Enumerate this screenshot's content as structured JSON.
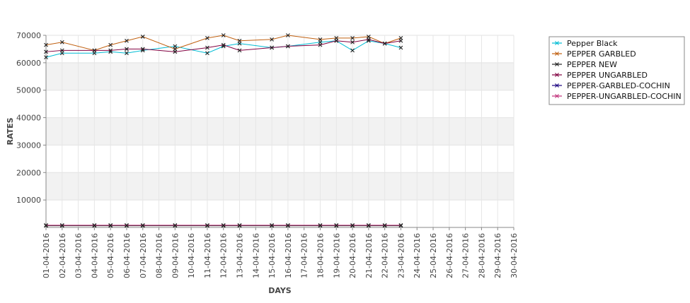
{
  "chart_data": {
    "type": "line",
    "xlabel": "DAYS",
    "ylabel": "RATES",
    "ylim": [
      0,
      70000
    ],
    "yticks": [
      10000,
      20000,
      30000,
      40000,
      50000,
      60000,
      70000
    ],
    "grid": true,
    "legend_position": "right",
    "x": [
      "01-04-2016",
      "02-04-2016",
      "03-04-2016",
      "04-04-2016",
      "05-04-2016",
      "06-04-2016",
      "07-04-2016",
      "08-04-2016",
      "09-04-2016",
      "10-04-2016",
      "11-04-2016",
      "12-04-2016",
      "13-04-2016",
      "14-04-2016",
      "15-04-2016",
      "16-04-2016",
      "17-04-2016",
      "18-04-2016",
      "19-04-2016",
      "20-04-2016",
      "21-04-2016",
      "22-04-2016",
      "23-04-2016",
      "24-04-2016",
      "25-04-2016",
      "26-04-2016",
      "27-04-2016",
      "28-04-2016",
      "29-04-2016",
      "30-04-2016"
    ],
    "series": [
      {
        "name": "Pepper Black",
        "color": "#00bcd4",
        "values": [
          62000,
          63500,
          null,
          63500,
          64000,
          63500,
          64500,
          null,
          66000,
          null,
          63500,
          66000,
          67000,
          null,
          65500,
          66000,
          null,
          67500,
          68000,
          64500,
          68000,
          67000,
          65500,
          null,
          null,
          null,
          null,
          null,
          null,
          null
        ]
      },
      {
        "name": "PEPPER GARBLED",
        "color": "#c06010",
        "values": [
          66500,
          67500,
          null,
          64500,
          66500,
          68000,
          69500,
          null,
          65000,
          null,
          69000,
          70000,
          68000,
          null,
          68500,
          70000,
          null,
          68500,
          69000,
          69000,
          69500,
          67000,
          69000,
          null,
          null,
          null,
          null,
          null,
          null,
          null
        ]
      },
      {
        "name": "PEPPER NEW",
        "color": "#222222",
        "values": [
          600,
          600,
          null,
          600,
          600,
          600,
          600,
          null,
          600,
          null,
          600,
          600,
          600,
          null,
          600,
          600,
          null,
          600,
          600,
          600,
          600,
          600,
          600,
          null,
          null,
          null,
          null,
          null,
          null,
          null
        ]
      },
      {
        "name": "PEPPER UNGARBLED",
        "color": "#800040",
        "values": [
          64000,
          64500,
          null,
          64500,
          64500,
          65000,
          65000,
          null,
          64000,
          null,
          65500,
          66500,
          64500,
          null,
          65500,
          66000,
          null,
          66500,
          68000,
          67500,
          68500,
          67000,
          68000,
          null,
          null,
          null,
          null,
          null,
          null,
          null
        ]
      },
      {
        "name": "PEPPER-GARBLED-COCHIN",
        "color": "#1a0080",
        "values": [
          null,
          null,
          null,
          null,
          null,
          null,
          null,
          null,
          null,
          null,
          null,
          null,
          null,
          null,
          null,
          null,
          null,
          null,
          null,
          null,
          null,
          null,
          null,
          null,
          null,
          null,
          null,
          null,
          null,
          null
        ]
      },
      {
        "name": "PEPPER-UNGARBLED-COCHIN",
        "color": "#c0307a",
        "values": [
          800,
          800,
          null,
          800,
          800,
          800,
          800,
          null,
          800,
          null,
          800,
          800,
          800,
          null,
          800,
          800,
          null,
          800,
          800,
          800,
          800,
          800,
          800,
          null,
          null,
          null,
          null,
          null,
          null,
          null
        ]
      }
    ]
  }
}
